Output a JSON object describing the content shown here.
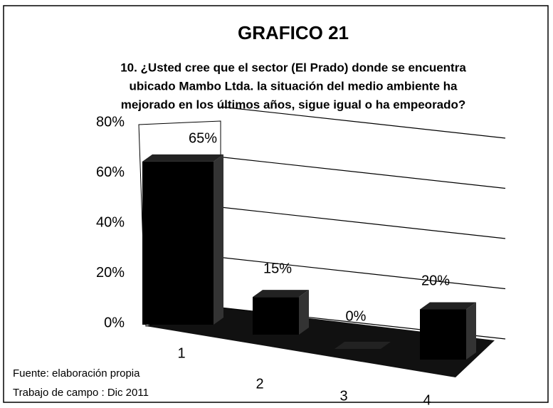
{
  "chart_data": {
    "type": "bar3d",
    "title": "GRAFICO 21",
    "subtitle": [
      "10. ¿Usted cree que el sector (El Prado) donde se encuentra",
      "ubicado Mambo Ltda. la situación del medio ambiente ha",
      "mejorado en los últimos años, sigue igual o ha empeorado?"
    ],
    "categories": [
      "1",
      "2",
      "3",
      "4"
    ],
    "values": [
      65,
      15,
      0,
      20
    ],
    "value_labels": [
      "65%",
      "15%",
      "0%",
      "20%"
    ],
    "color": "#000000",
    "ylim": [
      0,
      80
    ],
    "yticks": [
      {
        "value": 0,
        "label": "0%"
      },
      {
        "value": 20,
        "label": "20%"
      },
      {
        "value": 40,
        "label": "40%"
      },
      {
        "value": 60,
        "label": "60%"
      },
      {
        "value": 80,
        "label": "80%"
      }
    ],
    "grid": true,
    "notes": [
      "Fuente: elaboración propia",
      "Trabajo de campo : Dic 2011"
    ]
  }
}
